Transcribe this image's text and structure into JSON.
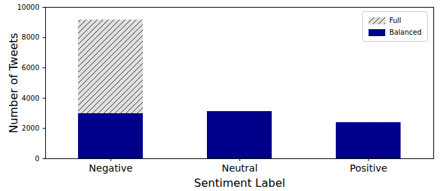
{
  "chart_data": {
    "type": "bar",
    "xlabel": "Sentiment Label",
    "ylabel": "Number of Tweets",
    "categories": [
      "Negative",
      "Neutral",
      "Positive"
    ],
    "series": [
      {
        "name": "Full",
        "color": "#e0e0e0",
        "values": [
          9170,
          3120,
          2390
        ]
      },
      {
        "name": "Balanced",
        "color": "#00008b",
        "values": [
          2980,
          3120,
          2390
        ]
      }
    ],
    "ylim": [
      0,
      10000
    ],
    "yticks": [
      0,
      2000,
      4000,
      6000,
      8000,
      10000
    ],
    "stacked": false,
    "legend": "upper right"
  }
}
